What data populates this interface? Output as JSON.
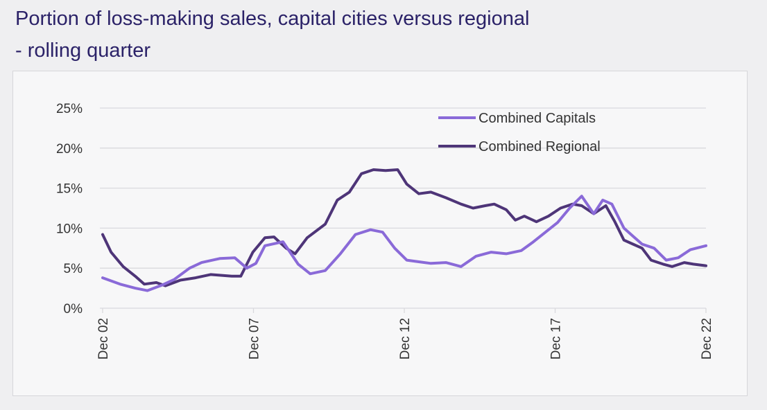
{
  "chart_data": {
    "type": "line",
    "title": "Portion of loss-making sales, capital cities versus regional - rolling quarter",
    "xlabel": "",
    "ylabel": "",
    "x_ticks": [
      "Dec 02",
      "Dec 07",
      "Dec 12",
      "Dec 17",
      "Dec 22"
    ],
    "y_ticks": [
      "0%",
      "5%",
      "10%",
      "15%",
      "20%",
      "25%"
    ],
    "ylim": [
      0,
      25
    ],
    "xlim": [
      2002.92,
      2022.92
    ],
    "grid": "horizontal",
    "legend_position": "top-right",
    "colors": {
      "Combined Capitals": "#8a6ad8",
      "Combined Regional": "#4e3578"
    },
    "series": [
      {
        "name": "Combined Capitals",
        "x": [
          2002.92,
          2003.5,
          2004.0,
          2004.4,
          2004.9,
          2005.3,
          2005.8,
          2006.2,
          2006.8,
          2007.3,
          2007.7,
          2008.0,
          2008.3,
          2008.9,
          2009.4,
          2009.8,
          2010.3,
          2010.8,
          2011.3,
          2011.8,
          2012.2,
          2012.6,
          2013.0,
          2013.4,
          2013.8,
          2014.3,
          2014.8,
          2015.3,
          2015.8,
          2016.3,
          2016.8,
          2017.2,
          2017.6,
          2018.0,
          2018.4,
          2018.8,
          2019.2,
          2019.5,
          2019.8,
          2020.2,
          2020.5,
          2020.8,
          2021.2,
          2021.6,
          2022.0,
          2022.4,
          2022.92
        ],
        "y": [
          3.8,
          3.0,
          2.5,
          2.2,
          2.9,
          3.6,
          5.0,
          5.7,
          6.2,
          6.3,
          5.0,
          5.6,
          7.8,
          8.3,
          5.5,
          4.3,
          4.7,
          6.8,
          9.2,
          9.8,
          9.5,
          7.5,
          6.0,
          5.8,
          5.6,
          5.7,
          5.2,
          6.5,
          7.0,
          6.8,
          7.2,
          8.3,
          9.5,
          10.7,
          12.5,
          14.0,
          11.8,
          13.5,
          13.0,
          10.0,
          9.0,
          8.0,
          7.5,
          6.0,
          6.3,
          7.3,
          7.8
        ]
      },
      {
        "name": "Combined Regional",
        "x": [
          2002.92,
          2003.2,
          2003.6,
          2004.0,
          2004.3,
          2004.7,
          2005.0,
          2005.5,
          2006.0,
          2006.5,
          2007.2,
          2007.5,
          2007.9,
          2008.3,
          2008.6,
          2009.0,
          2009.3,
          2009.7,
          2010.3,
          2010.7,
          2011.1,
          2011.5,
          2011.9,
          2012.3,
          2012.7,
          2013.0,
          2013.4,
          2013.8,
          2014.3,
          2014.8,
          2015.2,
          2015.6,
          2015.9,
          2016.3,
          2016.6,
          2016.9,
          2017.3,
          2017.7,
          2018.1,
          2018.5,
          2018.8,
          2019.2,
          2019.6,
          2019.9,
          2020.2,
          2020.5,
          2020.8,
          2021.1,
          2021.5,
          2021.8,
          2022.2,
          2022.5,
          2022.92
        ],
        "y": [
          9.2,
          7.0,
          5.2,
          4.0,
          3.0,
          3.2,
          2.8,
          3.5,
          3.8,
          4.2,
          4.0,
          4.0,
          7.0,
          8.8,
          8.9,
          7.5,
          6.8,
          8.8,
          10.5,
          13.5,
          14.5,
          16.8,
          17.3,
          17.2,
          17.3,
          15.5,
          14.3,
          14.5,
          13.8,
          13.0,
          12.5,
          12.8,
          13.0,
          12.3,
          11.0,
          11.5,
          10.8,
          11.5,
          12.5,
          13.0,
          12.8,
          11.8,
          12.8,
          10.8,
          8.5,
          8.0,
          7.5,
          6.0,
          5.5,
          5.2,
          5.7,
          5.5,
          5.3
        ]
      }
    ]
  }
}
